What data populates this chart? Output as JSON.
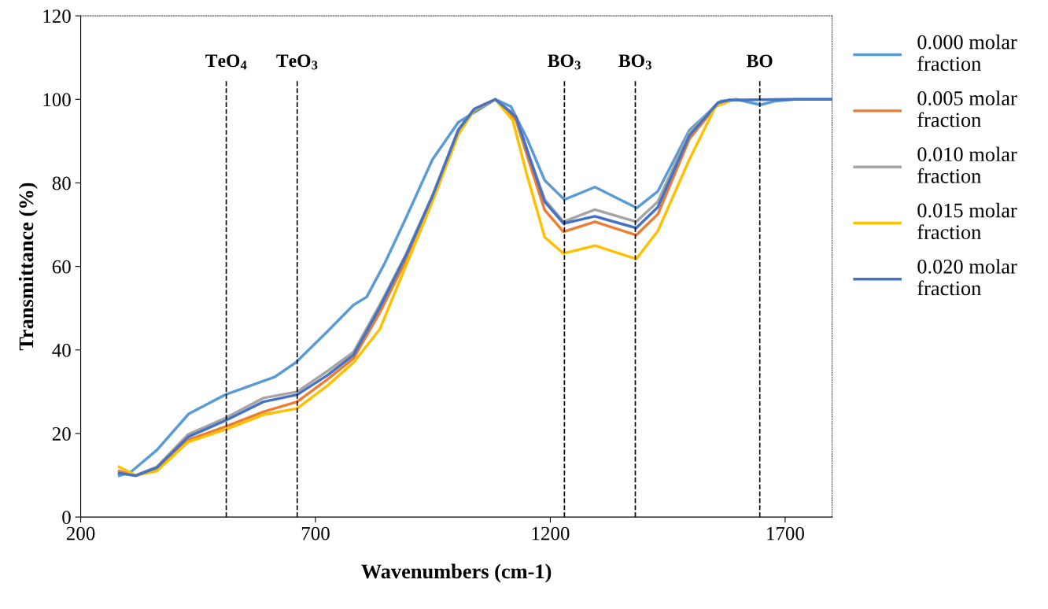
{
  "chart_data": {
    "type": "line",
    "xlabel": "Wavenumbers (cm-1)",
    "ylabel": "Transmittance (%)",
    "xlim": [
      200,
      1800
    ],
    "xticks": [
      200,
      700,
      1200,
      1700
    ],
    "ylim": [
      0,
      120
    ],
    "yticks": [
      0,
      20,
      40,
      60,
      80,
      100,
      120
    ],
    "grid": false,
    "legend": "right",
    "marker": "none",
    "line_style": "solid",
    "ref_lines": [
      {
        "axis": "x",
        "value": 510,
        "label": "TeO$_{4}$",
        "color": "#000000",
        "line_style": "dashed"
      },
      {
        "axis": "x",
        "value": 661,
        "label": "TeO$_{3}$",
        "color": "#000000",
        "line_style": "dashed"
      },
      {
        "axis": "x",
        "value": 1230,
        "label": "BO$_{3}$",
        "color": "#000000",
        "line_style": "dashed"
      },
      {
        "axis": "x",
        "value": 1381,
        "label": "BO$_{3}$",
        "color": "#000000",
        "line_style": "dashed"
      },
      {
        "axis": "x",
        "value": 1646,
        "label": "BO",
        "color": "#000000",
        "line_style": "dashed"
      }
    ],
    "series": [
      {
        "name": "0.000 molar fraction",
        "color": "#5b9bd5",
        "x": [
          282,
          307,
          362,
          430,
          508,
          614,
          658,
          725,
          781,
          809,
          848,
          893,
          949,
          1004,
          1083,
          1116,
          1150,
          1188,
          1230,
          1295,
          1384,
          1429,
          1496,
          1563,
          1596,
          1647,
          1680,
          1720,
          1800
        ],
        "values": [
          9.9,
          10.8,
          16,
          24.7,
          29.3,
          33.6,
          37,
          44.4,
          50.8,
          52.7,
          60.9,
          71.7,
          85.6,
          94.5,
          100,
          98.3,
          90.7,
          80.6,
          76,
          79,
          74,
          78,
          92.6,
          99.6,
          100,
          98.7,
          99.6,
          100,
          100
        ]
      },
      {
        "name": "0.005 molar fraction",
        "color": "#ed7d31",
        "x": [
          282,
          317,
          362,
          429,
          510,
          589,
          661,
          726,
          781,
          837,
          893,
          949,
          1004,
          1038,
          1083,
          1127,
          1155,
          1188,
          1228,
          1295,
          1383,
          1429,
          1496,
          1557,
          1580
        ],
        "values": [
          11,
          9.9,
          11.5,
          18.5,
          21.7,
          25.2,
          27.6,
          33,
          38,
          49,
          61.5,
          76,
          92,
          97.5,
          100,
          95,
          85,
          73.5,
          68.3,
          70.7,
          67.5,
          72.5,
          90.5,
          99,
          99.8
        ]
      },
      {
        "name": "0.010 molar fraction",
        "color": "#a5a5a5",
        "x": [
          282,
          317,
          362,
          429,
          510,
          589,
          661,
          726,
          781,
          837,
          893,
          949,
          1004,
          1038,
          1083,
          1127,
          1155,
          1188,
          1228,
          1295,
          1383,
          1429,
          1496,
          1557,
          1580
        ],
        "values": [
          10.5,
          10,
          12,
          19.8,
          23.8,
          28.5,
          30,
          35,
          39.5,
          50.8,
          63,
          77,
          92.8,
          97.7,
          100,
          96,
          86.5,
          76,
          70.7,
          73.6,
          70.7,
          75.5,
          92,
          99.2,
          99.8
        ]
      },
      {
        "name": "0.015 molar fraction",
        "color": "#ffc000",
        "x": [
          282,
          317,
          362,
          429,
          510,
          589,
          661,
          726,
          781,
          837,
          893,
          949,
          1004,
          1038,
          1083,
          1120,
          1150,
          1188,
          1228,
          1295,
          1383,
          1429,
          1496,
          1552,
          1590
        ],
        "values": [
          12,
          10,
          11,
          18,
          21,
          24.5,
          26,
          31.5,
          37,
          45,
          60.3,
          75.5,
          91.5,
          97.5,
          100,
          95,
          82,
          67,
          63.1,
          65,
          61.8,
          68.5,
          85.6,
          98.3,
          99.9
        ]
      },
      {
        "name": "0.020 molar fraction",
        "color": "#4472c4",
        "x": [
          282,
          317,
          362,
          429,
          510,
          589,
          661,
          726,
          781,
          837,
          893,
          949,
          1004,
          1038,
          1083,
          1127,
          1155,
          1188,
          1228,
          1295,
          1383,
          1429,
          1496,
          1557,
          1580,
          1700,
          1800
        ],
        "values": [
          10.5,
          9.9,
          11.8,
          19.2,
          23.2,
          27.6,
          29.3,
          34,
          38.8,
          50.2,
          62.7,
          76.8,
          92.6,
          97.7,
          100,
          95.8,
          86.3,
          75.5,
          70.3,
          72,
          69.2,
          74.2,
          91.3,
          99.2,
          99.8,
          100,
          100
        ]
      }
    ]
  }
}
